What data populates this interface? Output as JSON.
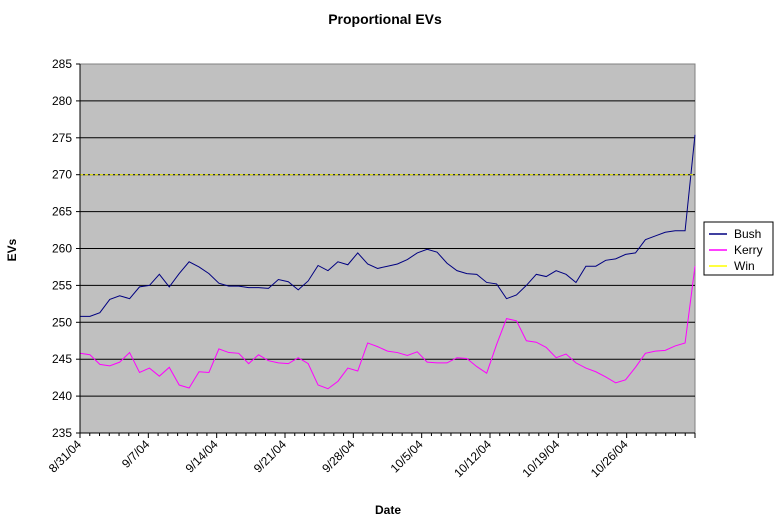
{
  "chart_data": {
    "type": "line",
    "title": "Proportional EVs",
    "xlabel": "Date",
    "ylabel": "EVs",
    "ylim": [
      235,
      285
    ],
    "y_ticks": [
      235,
      240,
      245,
      250,
      255,
      260,
      265,
      270,
      275,
      280,
      285
    ],
    "x_start": "8/31/04",
    "x_end": "11/2/04",
    "x_tick_labels": [
      "8/31/04",
      "9/7/04",
      "9/14/04",
      "9/21/04",
      "9/28/04",
      "10/5/04",
      "10/12/04",
      "10/19/04",
      "10/26/04"
    ],
    "grid": "horizontal",
    "plot_background": "#c0c0c0",
    "legend_position": "right",
    "series": [
      {
        "name": "Bush",
        "color": "#000080",
        "values": [
          250.8,
          250.8,
          251.3,
          253.1,
          253.6,
          253.2,
          254.8,
          255.0,
          256.5,
          254.8,
          256.6,
          258.2,
          257.5,
          256.6,
          255.3,
          254.9,
          254.9,
          254.7,
          254.7,
          254.6,
          255.8,
          255.5,
          254.4,
          255.6,
          257.7,
          257.0,
          258.2,
          257.8,
          259.4,
          257.9,
          257.3,
          257.6,
          257.9,
          258.5,
          259.4,
          259.9,
          259.5,
          258.0,
          257.0,
          256.6,
          256.5,
          255.4,
          255.2,
          253.2,
          253.7,
          255.0,
          256.5,
          256.2,
          257.0,
          256.5,
          255.4,
          257.6,
          257.6,
          258.4,
          258.6,
          259.2,
          259.4,
          261.2,
          261.7,
          262.2,
          262.4,
          262.4,
          275.4
        ]
      },
      {
        "name": "Kerry",
        "color": "#ff00ff",
        "values": [
          245.8,
          245.6,
          244.3,
          244.1,
          244.6,
          245.9,
          243.2,
          243.8,
          242.7,
          243.9,
          241.5,
          241.1,
          243.3,
          243.2,
          246.4,
          245.9,
          245.8,
          244.4,
          245.6,
          244.8,
          244.5,
          244.4,
          245.2,
          244.4,
          241.5,
          241.0,
          242.0,
          243.8,
          243.4,
          247.2,
          246.7,
          246.1,
          245.9,
          245.5,
          246.0,
          244.6,
          244.5,
          244.5,
          245.2,
          245.1,
          244.0,
          243.1,
          247.0,
          250.5,
          250.2,
          247.5,
          247.3,
          246.6,
          245.2,
          245.7,
          244.5,
          243.8,
          243.3,
          242.6,
          241.8,
          242.2,
          243.9,
          245.8,
          246.1,
          246.2,
          246.8,
          247.2,
          257.6
        ]
      },
      {
        "name": "Win",
        "color": "#ffff00",
        "values": [
          270,
          270
        ]
      }
    ]
  }
}
